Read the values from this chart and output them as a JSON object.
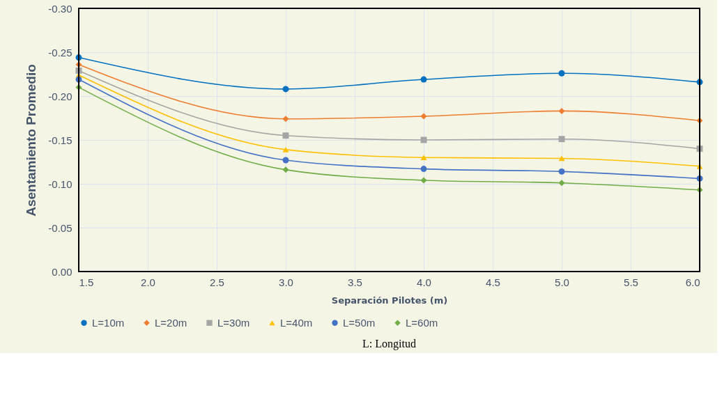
{
  "chart_data": {
    "type": "line",
    "xlabel": "Separación Pilotes (m)",
    "ylabel": "Asentamiento Promedio",
    "x": [
      1.5,
      3.0,
      4.0,
      5.0,
      6.0
    ],
    "series": [
      {
        "name": "L=10m",
        "color": "#0070c0",
        "marker": "circle",
        "values": [
          -0.244,
          -0.208,
          -0.219,
          -0.226,
          -0.216
        ]
      },
      {
        "name": "L=20m",
        "color": "#ed7d31",
        "marker": "diamond",
        "values": [
          -0.236,
          -0.174,
          -0.177,
          -0.183,
          -0.172
        ]
      },
      {
        "name": "L=30m",
        "color": "#a5a5a5",
        "marker": "square",
        "values": [
          -0.229,
          -0.155,
          -0.15,
          -0.151,
          -0.14
        ]
      },
      {
        "name": "L=40m",
        "color": "#ffc000",
        "marker": "triangle",
        "values": [
          -0.224,
          -0.139,
          -0.13,
          -0.129,
          -0.12
        ]
      },
      {
        "name": "L=50m",
        "color": "#4472c4",
        "marker": "circle",
        "values": [
          -0.219,
          -0.127,
          -0.117,
          -0.114,
          -0.106
        ]
      },
      {
        "name": "L=60m",
        "color": "#70ad47",
        "marker": "diamond",
        "values": [
          -0.21,
          -0.116,
          -0.104,
          -0.101,
          -0.093
        ]
      }
    ],
    "xlim": [
      1.5,
      6.0
    ],
    "xticks": [
      1.5,
      {
        "value": 2,
        "label": "2.0"
      },
      2.5,
      {
        "value": 3,
        "label": "3.0"
      },
      3.5,
      {
        "value": 4,
        "label": "4.0"
      },
      4.5,
      {
        "value": 5,
        "label": "5.0"
      },
      5.5,
      {
        "value": 6,
        "label": "6.0"
      }
    ],
    "ylim": [
      0,
      -0.3
    ],
    "yticks": [
      {
        "value": 0,
        "label": "0.00"
      },
      {
        "value": -0.05,
        "label": "-0.05"
      },
      {
        "value": -0.1,
        "label": "-0.10"
      },
      {
        "value": -0.15,
        "label": "-0.15"
      },
      {
        "value": -0.2,
        "label": "-0.20"
      },
      {
        "value": -0.25,
        "label": "-0.25"
      },
      {
        "value": -0.3,
        "label": "-0.30"
      }
    ],
    "grid": true,
    "legend": "bottom",
    "line_style": "solid",
    "annotations": [
      "L: Longitud"
    ]
  }
}
